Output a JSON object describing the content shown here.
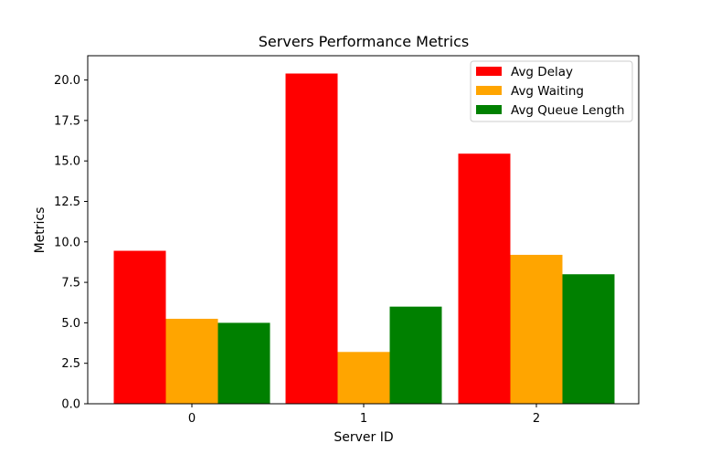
{
  "chart_data": {
    "type": "bar",
    "title": "Servers Performance Metrics",
    "xlabel": "Server ID",
    "ylabel": "Metrics",
    "categories": [
      "0",
      "1",
      "2"
    ],
    "ylim": [
      0,
      21.5
    ],
    "yticks": [
      0.0,
      2.5,
      5.0,
      7.5,
      10.0,
      12.5,
      15.0,
      17.5,
      20.0
    ],
    "ytick_labels": [
      "0.0",
      "2.5",
      "5.0",
      "7.5",
      "10.0",
      "12.5",
      "15.0",
      "17.5",
      "20.0"
    ],
    "grid": false,
    "legend_position": "top-right",
    "series": [
      {
        "name": "Avg Delay",
        "color": "#ff0000",
        "values": [
          9.45,
          20.4,
          15.45
        ]
      },
      {
        "name": "Avg Waiting",
        "color": "#ffa500",
        "values": [
          5.25,
          3.2,
          9.2
        ]
      },
      {
        "name": "Avg Queue Length",
        "color": "#008000",
        "values": [
          5.0,
          6.0,
          8.0
        ]
      }
    ]
  }
}
